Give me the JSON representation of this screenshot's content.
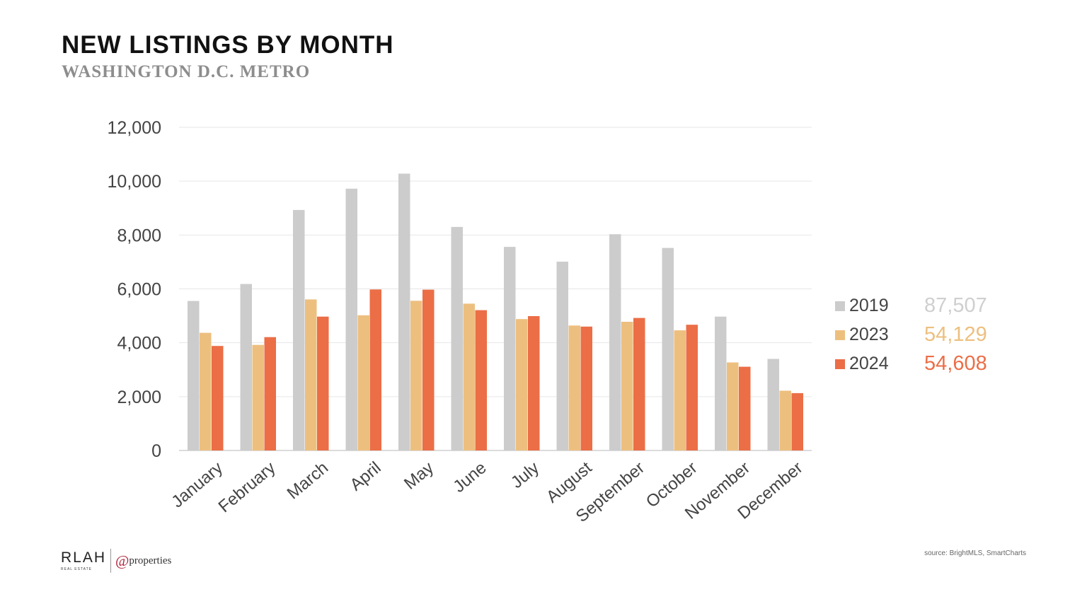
{
  "header": {
    "title": "NEW LISTINGS BY MONTH",
    "subtitle": "WASHINGTON D.C. METRO"
  },
  "chart_data": {
    "type": "bar",
    "categories": [
      "January",
      "February",
      "March",
      "April",
      "May",
      "June",
      "July",
      "August",
      "September",
      "October",
      "November",
      "December"
    ],
    "series": [
      {
        "name": "2019",
        "color": "#cccccc",
        "values": [
          5550,
          6180,
          8930,
          9720,
          10280,
          8300,
          7560,
          7010,
          8030,
          7520,
          4970,
          3400
        ]
      },
      {
        "name": "2023",
        "color": "#edbf7f",
        "values": [
          4370,
          3920,
          5610,
          5020,
          5560,
          5450,
          4880,
          4640,
          4780,
          4460,
          3270,
          2220
        ]
      },
      {
        "name": "2024",
        "color": "#eb6e47",
        "values": [
          3880,
          4210,
          4970,
          5980,
          5970,
          5210,
          4990,
          4600,
          4920,
          4670,
          3110,
          2130
        ]
      }
    ],
    "yticks": [
      "0",
      "2,000",
      "4,000",
      "6,000",
      "8,000",
      "10,000",
      "12,000"
    ],
    "ylim": [
      0,
      12000
    ],
    "grid": true,
    "legend_position": "right"
  },
  "legend": {
    "items": [
      {
        "label": "2019",
        "total": "87,507",
        "color": "#cccccc",
        "total_color": "#cfcfcf"
      },
      {
        "label": "2023",
        "total": "54,129",
        "color": "#edbf7f",
        "total_color": "#edbf7f"
      },
      {
        "label": "2024",
        "total": "54,608",
        "color": "#eb6e47",
        "total_color": "#eb6e47"
      }
    ]
  },
  "footer": {
    "logo_main": "RLAH",
    "logo_sub": "REAL ESTATE",
    "partner_at": "@",
    "partner_name": "properties",
    "source": "source: BrightMLS, SmartCharts"
  }
}
